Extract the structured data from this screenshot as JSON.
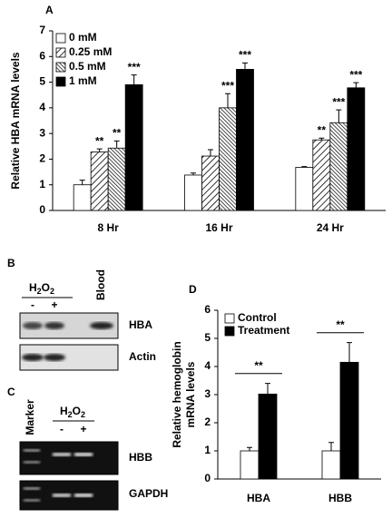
{
  "chart_data": [
    {
      "type": "bar",
      "panel": "A",
      "ylabel": [
        "Relative HBA mRNA levels"
      ],
      "categories": [
        "8 Hr",
        "16 Hr",
        "24 Hr"
      ],
      "series": [
        {
          "name": "0 mM",
          "color": "#ffffff",
          "pattern": "solid",
          "values": [
            1.0,
            1.38,
            1.68
          ],
          "errors": [
            0.18,
            0.08,
            0.03
          ],
          "significance": [
            null,
            null,
            null
          ]
        },
        {
          "name": "0.25 mM",
          "color": "#000000",
          "pattern": "hatch",
          "values": [
            2.28,
            2.12,
            2.75
          ],
          "errors": [
            0.12,
            0.25,
            0.07
          ],
          "significance": [
            "**",
            null,
            "**"
          ]
        },
        {
          "name": "0.5 mM",
          "color": "#000000",
          "pattern": "dense-hatch",
          "values": [
            2.43,
            4.0,
            3.42
          ],
          "errors": [
            0.28,
            0.55,
            0.5
          ],
          "significance": [
            "**",
            "***",
            "***"
          ]
        },
        {
          "name": "1 mM",
          "color": "#000000",
          "pattern": "solid",
          "values": [
            4.9,
            5.5,
            4.78
          ],
          "errors": [
            0.38,
            0.25,
            0.2
          ],
          "significance": [
            "***",
            "***",
            "***"
          ]
        }
      ],
      "ylim": [
        0,
        7
      ],
      "yticks": [
        0,
        1,
        2,
        3,
        4,
        5,
        6,
        7
      ],
      "legend": "upper left"
    },
    {
      "type": "bar",
      "panel": "D",
      "ylabel": [
        "Relative hemoglobin",
        "mRNA levels"
      ],
      "categories": [
        "HBA",
        "HBB"
      ],
      "series": [
        {
          "name": "Control",
          "color": "#ffffff",
          "pattern": "solid",
          "values": [
            1.0,
            1.0
          ],
          "errors": [
            0.12,
            0.3
          ]
        },
        {
          "name": "Treatment",
          "color": "#000000",
          "pattern": "solid",
          "values": [
            3.02,
            4.15
          ],
          "errors": [
            0.38,
            0.7
          ]
        }
      ],
      "brackets": [
        "**",
        "**"
      ],
      "ylim": [
        0,
        6
      ],
      "yticks": [
        0,
        1,
        2,
        3,
        4,
        5,
        6
      ],
      "legend": "upper left"
    }
  ],
  "blot_b": {
    "panel": "B",
    "treatment": "H2O2",
    "lanes": [
      "-",
      "+",
      "Blood"
    ],
    "bands": [
      "HBA",
      "Actin"
    ]
  },
  "blot_c": {
    "panel": "C",
    "marker": "Marker",
    "treatment": "H2O2",
    "lanes": [
      "-",
      "+"
    ],
    "bands": [
      "HBB",
      "GAPDH"
    ]
  }
}
